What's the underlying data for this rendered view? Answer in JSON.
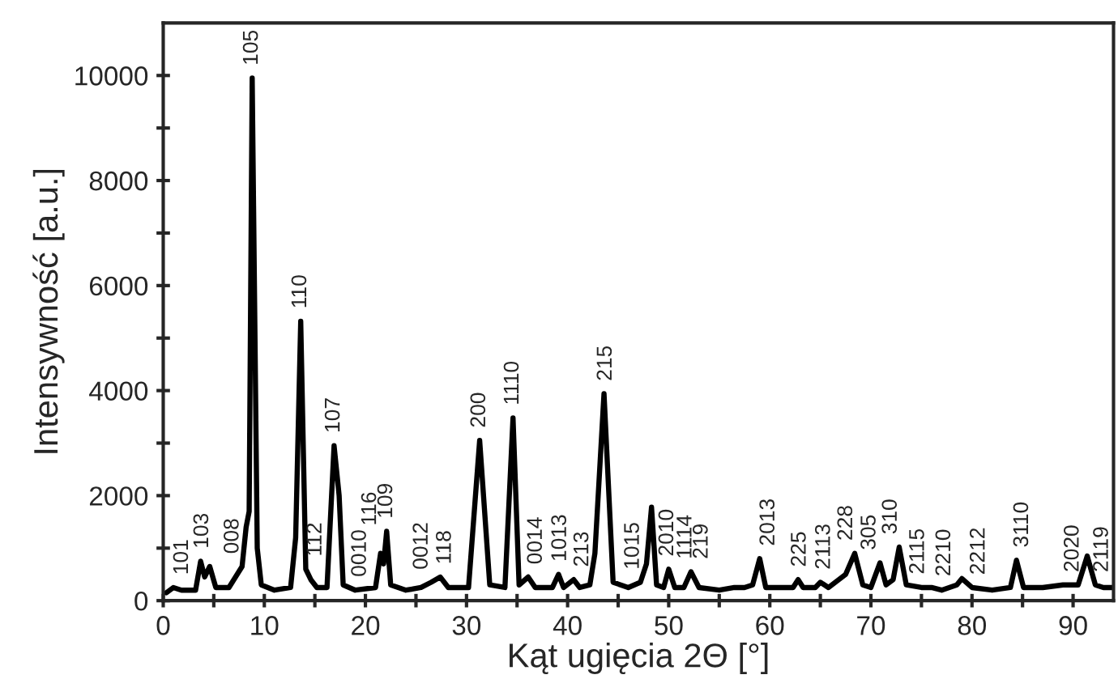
{
  "chart_data": {
    "type": "line",
    "xlabel": "Kąt ugięcia 2Θ [°]",
    "ylabel": "Intensywność [a.u.]",
    "xlim": [
      0,
      94
    ],
    "ylim": [
      0,
      11000
    ],
    "xticks": [
      0,
      {
        "value": 5,
        "label": null
      },
      10,
      {
        "value": 15,
        "label": null
      },
      20,
      {
        "value": 25,
        "label": null
      },
      30,
      {
        "value": 35,
        "label": null
      },
      40,
      {
        "value": 45,
        "label": null
      },
      50,
      {
        "value": 55,
        "label": null
      },
      60,
      {
        "value": 65,
        "label": null
      },
      70,
      {
        "value": 75,
        "label": null
      },
      80,
      {
        "value": 85,
        "label": null
      },
      90
    ],
    "yticks": [
      0,
      {
        "value": 1000,
        "label": null
      },
      2000,
      {
        "value": 3000,
        "label": null
      },
      4000,
      {
        "value": 5000,
        "label": null
      },
      6000,
      {
        "value": 7000,
        "label": null
      },
      8000,
      {
        "value": 9000,
        "label": null
      },
      10000
    ],
    "grid": false,
    "marker": "none",
    "line_style": "solid",
    "series": [
      {
        "color": "#000000",
        "x": [
          0.3,
          1,
          1.8,
          3.2,
          3.7,
          4.1,
          4.6,
          5.2,
          6.5,
          7.8,
          8.2,
          8.5,
          8.8,
          9.3,
          9.7,
          11,
          12.6,
          13.1,
          13.6,
          14.1,
          14.6,
          15.2,
          16.2,
          16.9,
          17.4,
          17.8,
          19,
          21,
          21.5,
          21.8,
          22.1,
          22.5,
          24,
          25.5,
          26.5,
          27.4,
          28.2,
          30.2,
          31.3,
          32.3,
          33.8,
          34.6,
          35.2,
          36.1,
          36.8,
          38.5,
          39.1,
          39.6,
          40.6,
          41.2,
          42.2,
          42.7,
          43.6,
          44.5,
          46,
          47.2,
          47.8,
          48.3,
          48.8,
          49.5,
          50.0,
          50.6,
          51.5,
          52.2,
          53.0,
          55,
          56.5,
          57.5,
          58.3,
          59.0,
          59.6,
          62.3,
          62.8,
          63.3,
          64.5,
          65.0,
          65.8,
          67.5,
          68.4,
          69.2,
          70,
          70.9,
          71.5,
          72.2,
          72.8,
          73.5,
          75,
          76,
          77,
          78.5,
          79.0,
          80,
          82,
          83.8,
          84.4,
          85.1,
          87,
          89,
          90.5,
          91.4,
          92.2,
          93,
          94
        ],
        "values": [
          150,
          250,
          200,
          200,
          750,
          450,
          650,
          250,
          250,
          650,
          1400,
          1700,
          9950,
          1000,
          300,
          200,
          250,
          1200,
          5320,
          600,
          400,
          250,
          250,
          2950,
          2000,
          300,
          200,
          250,
          900,
          700,
          1320,
          300,
          200,
          250,
          350,
          450,
          250,
          250,
          3050,
          300,
          250,
          3480,
          300,
          450,
          250,
          250,
          500,
          250,
          400,
          250,
          300,
          900,
          3940,
          350,
          250,
          350,
          700,
          1780,
          300,
          250,
          600,
          250,
          250,
          550,
          250,
          200,
          250,
          250,
          300,
          800,
          250,
          250,
          400,
          250,
          250,
          350,
          250,
          500,
          900,
          300,
          250,
          720,
          300,
          400,
          1020,
          300,
          250,
          250,
          200,
          300,
          420,
          250,
          200,
          250,
          770,
          250,
          250,
          300,
          300,
          850,
          300,
          250,
          250
        ]
      }
    ],
    "annotations": [
      {
        "text": "101",
        "x": 1.9,
        "y": 200
      },
      {
        "text": "103",
        "x": 3.9,
        "y": 600
      },
      {
        "text": "008",
        "x": 6.9,
        "y": 370
      },
      {
        "text": "105",
        "x": 8.8,
        "y": 9950
      },
      {
        "text": "110",
        "x": 13.6,
        "y": 5320
      },
      {
        "text": "112",
        "x": 15.1,
        "y": 275
      },
      {
        "text": "107",
        "x": 16.9,
        "y": 2950
      },
      {
        "text": "0010",
        "x": 19.5,
        "y": 210
      },
      {
        "text": "116",
        "x": 20.5,
        "y": 240
      },
      {
        "text": "109",
        "x": 22.1,
        "y": 1320
      },
      {
        "text": "0012",
        "x": 25.6,
        "y": 260
      },
      {
        "text": "118",
        "x": 27.9,
        "y": 330
      },
      {
        "text": "200",
        "x": 31.3,
        "y": 3050
      },
      {
        "text": "1110",
        "x": 34.6,
        "y": 3480
      },
      {
        "text": "0014",
        "x": 36.9,
        "y": 250
      },
      {
        "text": "1013",
        "x": 39.3,
        "y": 400
      },
      {
        "text": "213",
        "x": 41.5,
        "y": 270
      },
      {
        "text": "215",
        "x": 43.8,
        "y": 3140
      },
      {
        "text": "1015",
        "x": 46.5,
        "y": 290
      },
      {
        "text": "2010",
        "x": 49.9,
        "y": 530
      },
      {
        "text": "1114",
        "x": 51.7,
        "y": 450
      },
      {
        "text": "219",
        "x": 53.3,
        "y": 250
      },
      {
        "text": "2013",
        "x": 59.9,
        "y": 250
      },
      {
        "text": "225",
        "x": 63.0,
        "y": 340
      },
      {
        "text": "2113",
        "x": 65.4,
        "y": 300
      },
      {
        "text": "228",
        "x": 67.6,
        "y": 540
      },
      {
        "text": "305",
        "x": 69.9,
        "y": 260
      },
      {
        "text": "310",
        "x": 72.0,
        "y": 370
      },
      {
        "text": "2115",
        "x": 74.7,
        "y": 260
      },
      {
        "text": "2210",
        "x": 77.3,
        "y": 220
      },
      {
        "text": "2212",
        "x": 80.7,
        "y": 230
      },
      {
        "text": "3110",
        "x": 85.0,
        "y": 320
      },
      {
        "text": "2020",
        "x": 90.0,
        "y": 300
      },
      {
        "text": "2119",
        "x": 92.9,
        "y": 260
      }
    ]
  }
}
